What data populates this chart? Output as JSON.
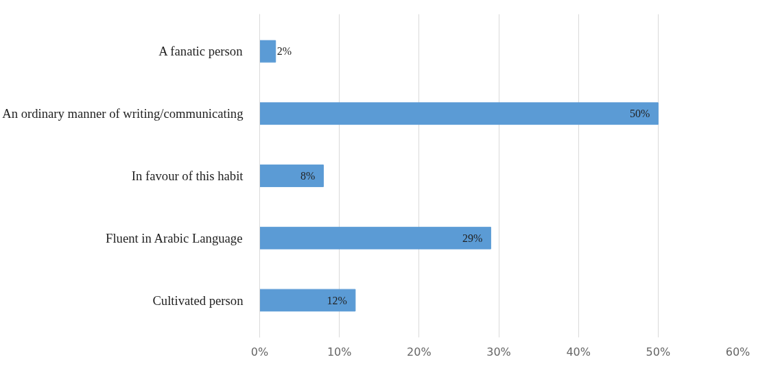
{
  "chart_data": {
    "type": "bar",
    "orientation": "horizontal",
    "categories": [
      "A fanatic person",
      "An ordinary manner of writing/communicating",
      "In favour of this habit",
      "Fluent in Arabic Language",
      "Cultivated person"
    ],
    "values": [
      2,
      50,
      8,
      29,
      12
    ],
    "color": "#5b9bd5",
    "data_labels": true,
    "value_labels": [
      "2%",
      "50%",
      "8%",
      "29%",
      "12%"
    ],
    "xlim": [
      0,
      60
    ],
    "xticks": [
      {
        "value": 0,
        "label": "0%"
      },
      {
        "value": 10,
        "label": "10%"
      },
      {
        "value": 20,
        "label": "20%"
      },
      {
        "value": 30,
        "label": "30%"
      },
      {
        "value": 40,
        "label": "40%"
      },
      {
        "value": 50,
        "label": "50%"
      },
      {
        "value": 60,
        "label": "60%"
      }
    ],
    "grid": "x"
  }
}
